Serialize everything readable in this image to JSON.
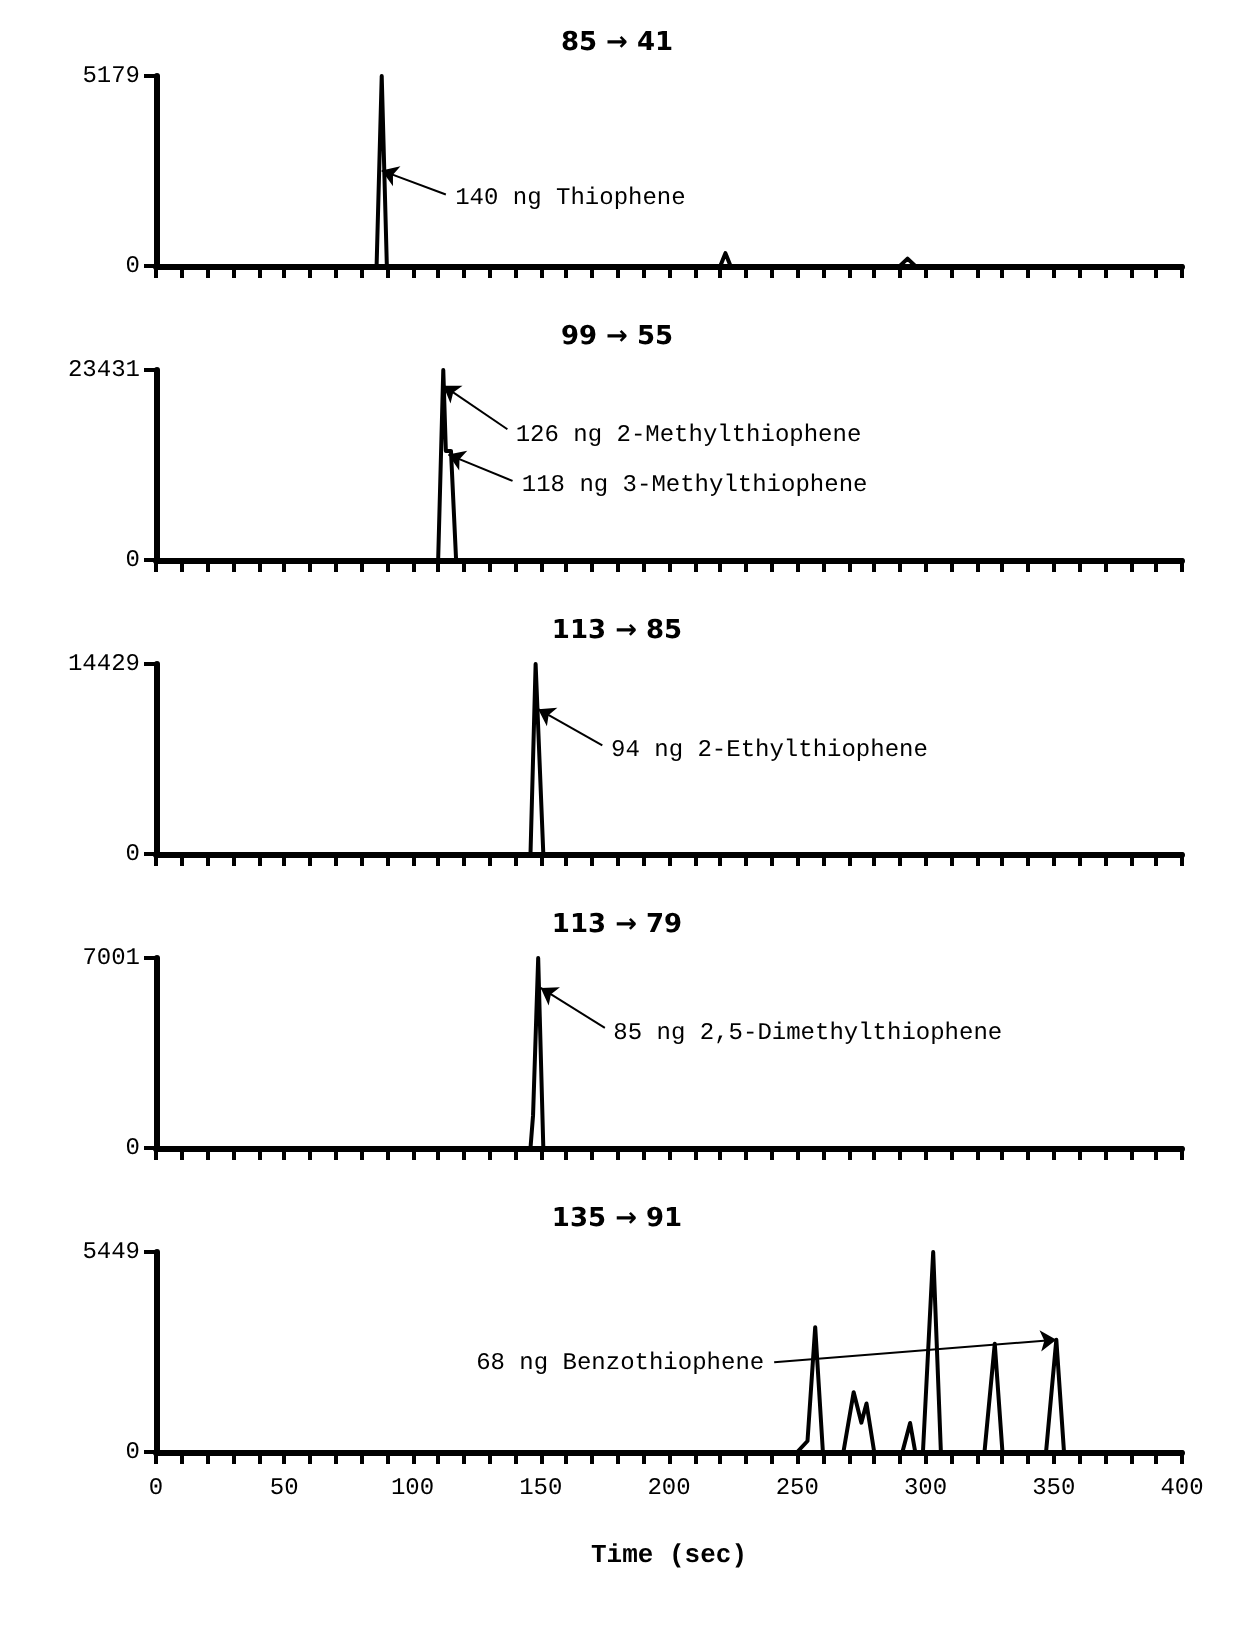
{
  "chart_data": [
    {
      "type": "line",
      "title": "85 → 41",
      "x": [
        0,
        86,
        88,
        90,
        220,
        222,
        224,
        290,
        293,
        296,
        400
      ],
      "values": [
        0,
        0,
        5179,
        0,
        0,
        350,
        0,
        0,
        200,
        0,
        0
      ],
      "color": "#000000",
      "xlim": [
        0,
        400
      ],
      "ylim": [
        0,
        5179
      ],
      "yticks": [
        0,
        5179
      ],
      "xticks": [
        0,
        {
          "value": 10,
          "label": null
        },
        {
          "value": 20,
          "label": null
        },
        {
          "value": 30,
          "label": null
        },
        {
          "value": 40,
          "label": null
        },
        50,
        {
          "value": 60,
          "label": null
        },
        {
          "value": 70,
          "label": null
        },
        {
          "value": 80,
          "label": null
        },
        {
          "value": 90,
          "label": null
        },
        100,
        {
          "value": 110,
          "label": null
        },
        {
          "value": 120,
          "label": null
        },
        {
          "value": 130,
          "label": null
        },
        {
          "value": 140,
          "label": null
        },
        150,
        {
          "value": 160,
          "label": null
        },
        {
          "value": 170,
          "label": null
        },
        {
          "value": 180,
          "label": null
        },
        {
          "value": 190,
          "label": null
        },
        200,
        {
          "value": 210,
          "label": null
        },
        {
          "value": 220,
          "label": null
        },
        {
          "value": 230,
          "label": null
        },
        {
          "value": 240,
          "label": null
        },
        250,
        {
          "value": 260,
          "label": null
        },
        {
          "value": 270,
          "label": null
        },
        {
          "value": 280,
          "label": null
        },
        {
          "value": 290,
          "label": null
        },
        300,
        {
          "value": 310,
          "label": null
        },
        {
          "value": 320,
          "label": null
        },
        {
          "value": 330,
          "label": null
        },
        {
          "value": 340,
          "label": null
        },
        350,
        {
          "value": 360,
          "label": null
        },
        {
          "value": 370,
          "label": null
        },
        {
          "value": 380,
          "label": null
        },
        {
          "value": 390,
          "label": null
        },
        400
      ],
      "tick_labels": "y",
      "annotations": [
        {
          "text": "140 ng Thiophene",
          "x": 88,
          "y": 2600
        }
      ]
    },
    {
      "type": "line",
      "title": "99 → 55",
      "x": [
        0,
        108,
        110,
        112,
        113,
        115,
        117,
        400
      ],
      "values": [
        0,
        0,
        0,
        23431,
        13450,
        13450,
        0,
        0
      ],
      "color": "#000000",
      "xlim": [
        0,
        400
      ],
      "ylim": [
        0,
        23431
      ],
      "yticks": [
        0,
        23431
      ],
      "xticks": [
        0,
        {
          "value": 10,
          "label": null
        },
        {
          "value": 20,
          "label": null
        },
        {
          "value": 30,
          "label": null
        },
        {
          "value": 40,
          "label": null
        },
        50,
        {
          "value": 60,
          "label": null
        },
        {
          "value": 70,
          "label": null
        },
        {
          "value": 80,
          "label": null
        },
        {
          "value": 90,
          "label": null
        },
        100,
        {
          "value": 110,
          "label": null
        },
        {
          "value": 120,
          "label": null
        },
        {
          "value": 130,
          "label": null
        },
        {
          "value": 140,
          "label": null
        },
        150,
        {
          "value": 160,
          "label": null
        },
        {
          "value": 170,
          "label": null
        },
        {
          "value": 180,
          "label": null
        },
        {
          "value": 190,
          "label": null
        },
        200,
        {
          "value": 210,
          "label": null
        },
        {
          "value": 220,
          "label": null
        },
        {
          "value": 230,
          "label": null
        },
        {
          "value": 240,
          "label": null
        },
        250,
        {
          "value": 260,
          "label": null
        },
        {
          "value": 270,
          "label": null
        },
        {
          "value": 280,
          "label": null
        },
        {
          "value": 290,
          "label": null
        },
        300,
        {
          "value": 310,
          "label": null
        },
        {
          "value": 320,
          "label": null
        },
        {
          "value": 330,
          "label": null
        },
        {
          "value": 340,
          "label": null
        },
        350,
        {
          "value": 360,
          "label": null
        },
        {
          "value": 370,
          "label": null
        },
        {
          "value": 380,
          "label": null
        },
        {
          "value": 390,
          "label": null
        },
        400
      ],
      "tick_labels": "y",
      "annotations": [
        {
          "text": "126 ng 2-Methylthiophene",
          "x": 112,
          "y": 21500
        },
        {
          "text": "118 ng 3-Methylthiophene",
          "x": 114,
          "y": 13000
        }
      ]
    },
    {
      "type": "line",
      "title": "113 → 85",
      "x": [
        0,
        146,
        148,
        151,
        400
      ],
      "values": [
        0,
        0,
        14429,
        0,
        0
      ],
      "color": "#000000",
      "xlim": [
        0,
        400
      ],
      "ylim": [
        0,
        14429
      ],
      "yticks": [
        0,
        14429
      ],
      "xticks": [
        0,
        {
          "value": 10,
          "label": null
        },
        {
          "value": 20,
          "label": null
        },
        {
          "value": 30,
          "label": null
        },
        {
          "value": 40,
          "label": null
        },
        50,
        {
          "value": 60,
          "label": null
        },
        {
          "value": 70,
          "label": null
        },
        {
          "value": 80,
          "label": null
        },
        {
          "value": 90,
          "label": null
        },
        100,
        {
          "value": 110,
          "label": null
        },
        {
          "value": 120,
          "label": null
        },
        {
          "value": 130,
          "label": null
        },
        {
          "value": 140,
          "label": null
        },
        150,
        {
          "value": 160,
          "label": null
        },
        {
          "value": 170,
          "label": null
        },
        {
          "value": 180,
          "label": null
        },
        {
          "value": 190,
          "label": null
        },
        200,
        {
          "value": 210,
          "label": null
        },
        {
          "value": 220,
          "label": null
        },
        {
          "value": 230,
          "label": null
        },
        {
          "value": 240,
          "label": null
        },
        250,
        {
          "value": 260,
          "label": null
        },
        {
          "value": 270,
          "label": null
        },
        {
          "value": 280,
          "label": null
        },
        {
          "value": 290,
          "label": null
        },
        300,
        {
          "value": 310,
          "label": null
        },
        {
          "value": 320,
          "label": null
        },
        {
          "value": 330,
          "label": null
        },
        {
          "value": 340,
          "label": null
        },
        350,
        {
          "value": 360,
          "label": null
        },
        {
          "value": 370,
          "label": null
        },
        {
          "value": 380,
          "label": null
        },
        {
          "value": 390,
          "label": null
        },
        400
      ],
      "tick_labels": "y",
      "annotations": [
        {
          "text": "94 ng 2-Ethylthiophene",
          "x": 149,
          "y": 11000
        }
      ]
    },
    {
      "type": "line",
      "title": "113 → 79",
      "x": [
        0,
        146,
        147,
        149,
        151,
        400
      ],
      "values": [
        0,
        0,
        1200,
        7001,
        0,
        0
      ],
      "color": "#000000",
      "xlim": [
        0,
        400
      ],
      "ylim": [
        0,
        7001
      ],
      "yticks": [
        0,
        7001
      ],
      "xticks": [
        0,
        {
          "value": 10,
          "label": null
        },
        {
          "value": 20,
          "label": null
        },
        {
          "value": 30,
          "label": null
        },
        {
          "value": 40,
          "label": null
        },
        50,
        {
          "value": 60,
          "label": null
        },
        {
          "value": 70,
          "label": null
        },
        {
          "value": 80,
          "label": null
        },
        {
          "value": 90,
          "label": null
        },
        100,
        {
          "value": 110,
          "label": null
        },
        {
          "value": 120,
          "label": null
        },
        {
          "value": 130,
          "label": null
        },
        {
          "value": 140,
          "label": null
        },
        150,
        {
          "value": 160,
          "label": null
        },
        {
          "value": 170,
          "label": null
        },
        {
          "value": 180,
          "label": null
        },
        {
          "value": 190,
          "label": null
        },
        200,
        {
          "value": 210,
          "label": null
        },
        {
          "value": 220,
          "label": null
        },
        {
          "value": 230,
          "label": null
        },
        {
          "value": 240,
          "label": null
        },
        250,
        {
          "value": 260,
          "label": null
        },
        {
          "value": 270,
          "label": null
        },
        {
          "value": 280,
          "label": null
        },
        {
          "value": 290,
          "label": null
        },
        300,
        {
          "value": 310,
          "label": null
        },
        {
          "value": 320,
          "label": null
        },
        {
          "value": 330,
          "label": null
        },
        {
          "value": 340,
          "label": null
        },
        350,
        {
          "value": 360,
          "label": null
        },
        {
          "value": 370,
          "label": null
        },
        {
          "value": 380,
          "label": null
        },
        {
          "value": 390,
          "label": null
        },
        400
      ],
      "tick_labels": "y",
      "annotations": [
        {
          "text": "85 ng 2,5-Dimethylthiophene",
          "x": 150,
          "y": 5900
        }
      ]
    },
    {
      "type": "line",
      "title": "135 → 91",
      "xlabel": "Time (sec)",
      "x": [
        0,
        250,
        254,
        257,
        260,
        268,
        272,
        275,
        277,
        280,
        291,
        294,
        296,
        299,
        303,
        306,
        323,
        327,
        330,
        347,
        351,
        354,
        400
      ],
      "values": [
        0,
        0,
        300,
        3400,
        0,
        0,
        1630,
        800,
        1320,
        0,
        0,
        790,
        0,
        0,
        5449,
        0,
        0,
        2950,
        0,
        0,
        3060,
        0,
        0
      ],
      "color": "#000000",
      "xlim": [
        0,
        400
      ],
      "ylim": [
        0,
        5449
      ],
      "yticks": [
        0,
        5449
      ],
      "xticks": [
        0,
        {
          "value": 10,
          "label": null
        },
        {
          "value": 20,
          "label": null
        },
        {
          "value": 30,
          "label": null
        },
        {
          "value": 40,
          "label": null
        },
        50,
        {
          "value": 60,
          "label": null
        },
        {
          "value": 70,
          "label": null
        },
        {
          "value": 80,
          "label": null
        },
        {
          "value": 90,
          "label": null
        },
        100,
        {
          "value": 110,
          "label": null
        },
        {
          "value": 120,
          "label": null
        },
        {
          "value": 130,
          "label": null
        },
        {
          "value": 140,
          "label": null
        },
        150,
        {
          "value": 160,
          "label": null
        },
        {
          "value": 170,
          "label": null
        },
        {
          "value": 180,
          "label": null
        },
        {
          "value": 190,
          "label": null
        },
        200,
        {
          "value": 210,
          "label": null
        },
        {
          "value": 220,
          "label": null
        },
        {
          "value": 230,
          "label": null
        },
        {
          "value": 240,
          "label": null
        },
        250,
        {
          "value": 260,
          "label": null
        },
        {
          "value": 270,
          "label": null
        },
        {
          "value": 280,
          "label": null
        },
        {
          "value": 290,
          "label": null
        },
        300,
        {
          "value": 310,
          "label": null
        },
        {
          "value": 320,
          "label": null
        },
        {
          "value": 330,
          "label": null
        },
        {
          "value": 340,
          "label": null
        },
        350,
        {
          "value": 360,
          "label": null
        },
        {
          "value": 370,
          "label": null
        },
        {
          "value": 380,
          "label": null
        },
        {
          "value": 390,
          "label": null
        },
        400
      ],
      "annotations": [
        {
          "text": "68 ng Benzothiophene",
          "x": 351,
          "y": 3060
        }
      ]
    }
  ]
}
